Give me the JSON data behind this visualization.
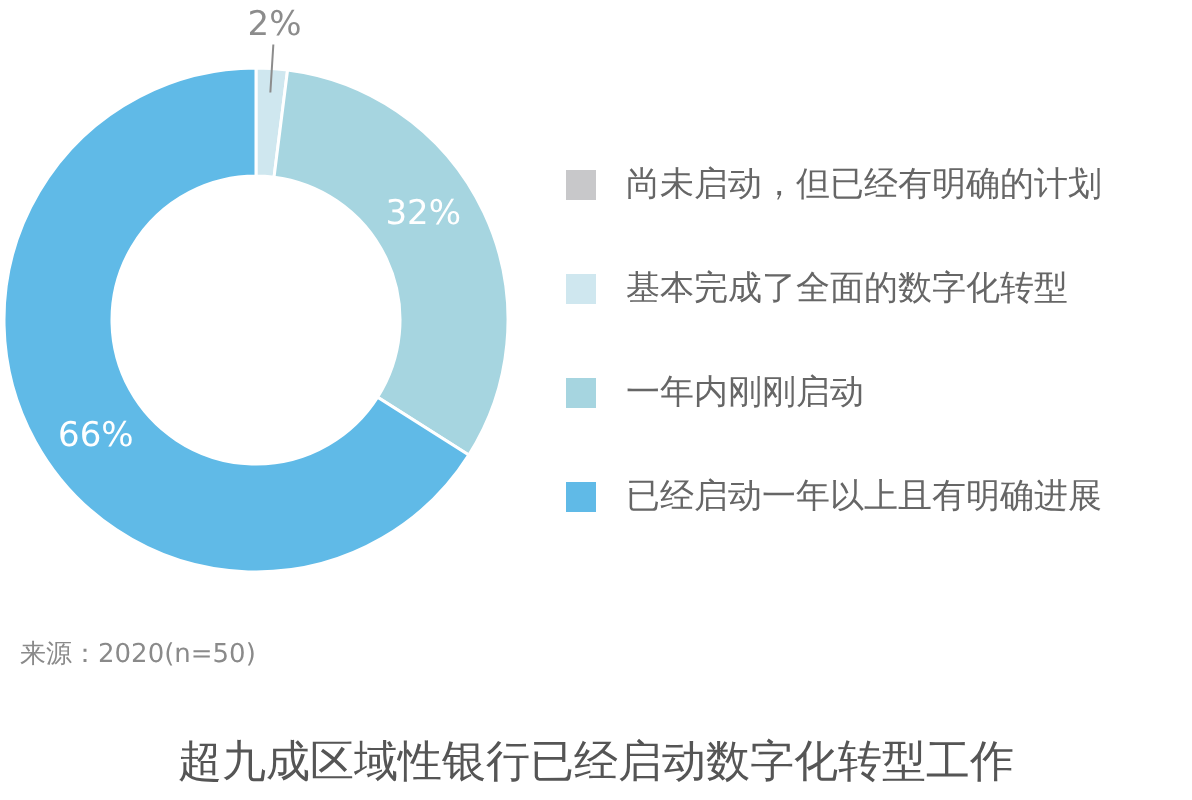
{
  "chart_data": {
    "type": "donut",
    "title": "超九成区域性银行已经启动数字化转型工作",
    "annotations": [
      "来源：2020(n=50)"
    ],
    "categories": [
      "尚未启动，但已经有明确的计划",
      "基本完成了全面的数字化转型",
      "一年内刚刚启动",
      "已经启动一年以上且有明确进展"
    ],
    "values": [
      null,
      2,
      32,
      66
    ],
    "colors": [
      "#c8c8ca",
      "#cfe7ef",
      "#a6d5e0",
      "#60bae7"
    ],
    "value_labels": [
      null,
      "2%",
      "32%",
      "66%"
    ],
    "legend": "right"
  }
}
